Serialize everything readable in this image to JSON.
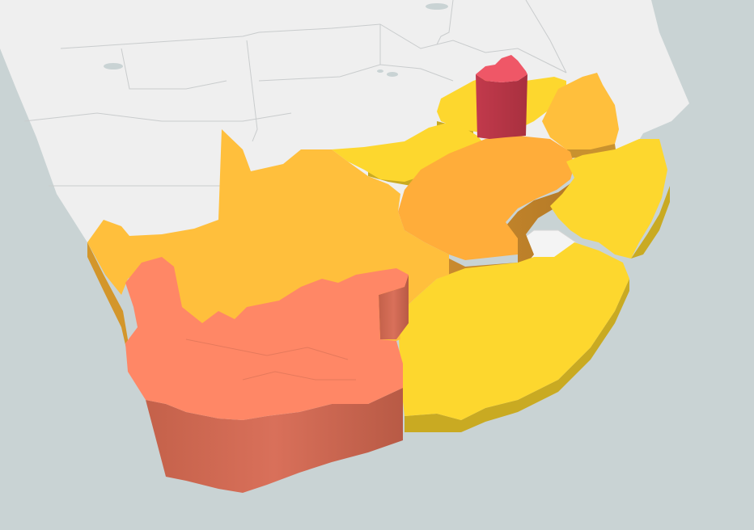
{
  "map": {
    "view": "3d-extruded-choropleth",
    "region": "South Africa",
    "colors": {
      "ocean": "#c9d3d4",
      "land": "#efefef",
      "land_border": "#cfd1d1",
      "yellow": "#fdd72e",
      "light_orange": "#ffbf3c",
      "orange": "#ffad3a",
      "salmon": "#ff8766",
      "red": "#ef5767"
    },
    "provinces": [
      {
        "id": "northern-cape",
        "color_key": "light_orange",
        "height_rank": 2
      },
      {
        "id": "western-cape",
        "color_key": "salmon",
        "height_rank": 4
      },
      {
        "id": "eastern-cape",
        "color_key": "yellow",
        "height_rank": 1
      },
      {
        "id": "free-state",
        "color_key": "orange",
        "height_rank": 3
      },
      {
        "id": "north-west",
        "color_key": "yellow",
        "height_rank": 1
      },
      {
        "id": "gauteng",
        "color_key": "red",
        "height_rank": 5
      },
      {
        "id": "limpopo",
        "color_key": "yellow",
        "height_rank": 1
      },
      {
        "id": "mpumalanga",
        "color_key": "light_orange",
        "height_rank": 2
      },
      {
        "id": "kwazulu-natal",
        "color_key": "yellow",
        "height_rank": 1
      }
    ]
  }
}
